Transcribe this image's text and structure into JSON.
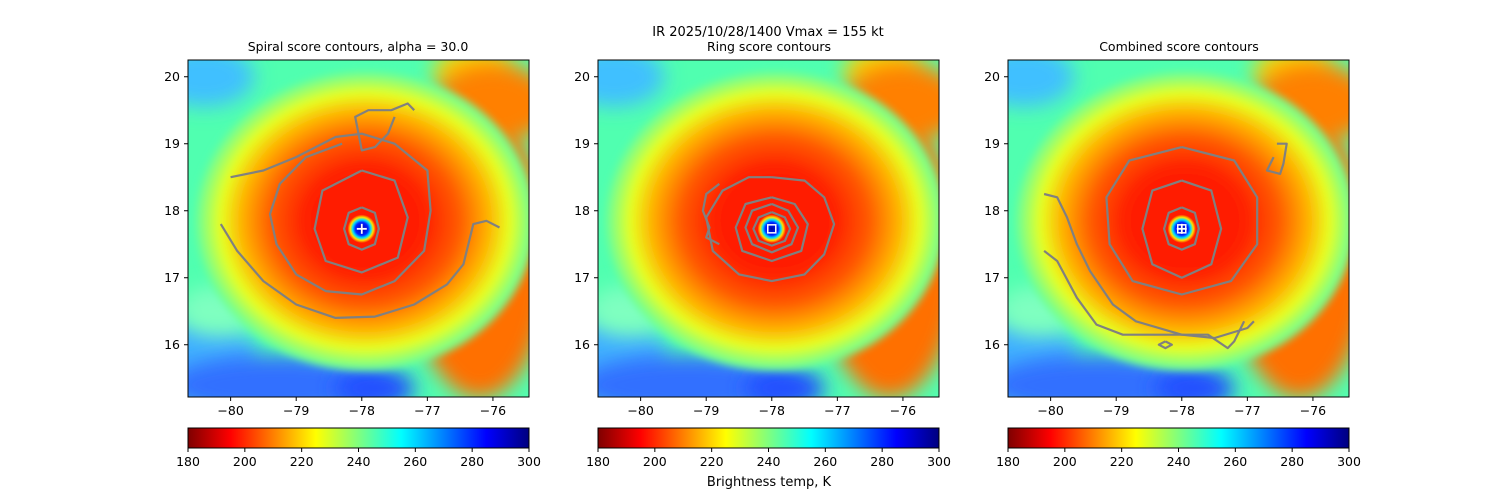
{
  "suptitle": "IR  2025/10/28/1400    Vmax = 155 kt",
  "colorbar_label": "Brightness temp, K",
  "chart_data": [
    {
      "type": "heatmap",
      "title": "Spiral score contours, alpha = 30.0",
      "xlim": [
        -80.65,
        -75.45
      ],
      "ylim": [
        15.22,
        20.25
      ],
      "xticks": [
        -80,
        -79,
        -78,
        -77,
        -76
      ],
      "yticks": [
        16,
        17,
        18,
        19,
        20
      ],
      "xtick_labels": [
        "−80",
        "−79",
        "−78",
        "−77",
        "−76"
      ],
      "ytick_labels": [
        "16",
        "17",
        "18",
        "19",
        "20"
      ],
      "colormap": "jet_r",
      "clim": [
        180,
        300
      ],
      "colorbar_ticks": [
        180,
        200,
        220,
        240,
        260,
        280,
        300
      ],
      "contour_color": "#808080",
      "center_marker": {
        "lon": -78.0,
        "lat": 17.73,
        "symbol": "plus",
        "color": "#ffffff"
      },
      "contours": [
        [
          [
            -78.0,
            18.05
          ],
          [
            -77.8,
            17.97
          ],
          [
            -77.74,
            17.73
          ],
          [
            -77.8,
            17.5
          ],
          [
            -78.0,
            17.42
          ],
          [
            -78.2,
            17.5
          ],
          [
            -78.27,
            17.73
          ],
          [
            -78.2,
            17.97
          ],
          [
            -78.0,
            18.05
          ]
        ],
        [
          [
            -78.0,
            18.6
          ],
          [
            -77.5,
            18.45
          ],
          [
            -77.3,
            17.9
          ],
          [
            -77.45,
            17.3
          ],
          [
            -78.0,
            17.08
          ],
          [
            -78.55,
            17.25
          ],
          [
            -78.72,
            17.73
          ],
          [
            -78.6,
            18.3
          ],
          [
            -78.0,
            18.6
          ]
        ],
        [
          [
            -80.0,
            18.5
          ],
          [
            -79.5,
            18.6
          ],
          [
            -79.0,
            18.8
          ],
          [
            -78.4,
            19.1
          ],
          [
            -78.0,
            19.15
          ],
          [
            -77.5,
            19.0
          ],
          [
            -77.0,
            18.6
          ],
          [
            -76.95,
            18.0
          ],
          [
            -77.05,
            17.4
          ],
          [
            -77.5,
            16.95
          ],
          [
            -78.0,
            16.75
          ],
          [
            -78.55,
            16.8
          ],
          [
            -79.0,
            17.05
          ],
          [
            -79.3,
            17.5
          ],
          [
            -79.4,
            17.95
          ],
          [
            -79.25,
            18.4
          ],
          [
            -78.85,
            18.8
          ],
          [
            -78.3,
            19.0
          ]
        ],
        [
          [
            -80.15,
            17.8
          ],
          [
            -79.9,
            17.4
          ],
          [
            -79.5,
            16.95
          ],
          [
            -79.0,
            16.6
          ],
          [
            -78.4,
            16.4
          ],
          [
            -77.8,
            16.42
          ],
          [
            -77.2,
            16.6
          ],
          [
            -76.7,
            16.9
          ],
          [
            -76.45,
            17.2
          ],
          [
            -76.3,
            17.8
          ],
          [
            -76.1,
            17.85
          ],
          [
            -75.9,
            17.75
          ]
        ],
        [
          [
            -77.5,
            19.4
          ],
          [
            -77.6,
            19.15
          ],
          [
            -77.8,
            18.95
          ],
          [
            -78.0,
            18.9
          ],
          [
            -78.1,
            19.4
          ],
          [
            -77.9,
            19.5
          ],
          [
            -77.65,
            19.5
          ],
          [
            -77.55,
            19.5
          ],
          [
            -77.3,
            19.6
          ],
          [
            -77.2,
            19.5
          ]
        ]
      ]
    },
    {
      "type": "heatmap",
      "title": "Ring score contours",
      "xlim": [
        -80.65,
        -75.45
      ],
      "ylim": [
        15.22,
        20.25
      ],
      "xticks": [
        -80,
        -79,
        -78,
        -77,
        -76
      ],
      "yticks": [
        16,
        17,
        18,
        19,
        20
      ],
      "xtick_labels": [
        "−80",
        "−79",
        "−78",
        "−77",
        "−76"
      ],
      "ytick_labels": [
        "16",
        "17",
        "18",
        "19",
        "20"
      ],
      "colormap": "jet_r",
      "clim": [
        180,
        300
      ],
      "colorbar_ticks": [
        180,
        200,
        220,
        240,
        260,
        280,
        300
      ],
      "contour_color": "#808080",
      "center_marker": {
        "lon": -78.0,
        "lat": 17.73,
        "symbol": "square",
        "color": "#ffffff"
      },
      "contours": [
        [
          [
            -78.0,
            18.2
          ],
          [
            -77.65,
            18.1
          ],
          [
            -77.45,
            17.8
          ],
          [
            -77.55,
            17.4
          ],
          [
            -78.0,
            17.25
          ],
          [
            -78.45,
            17.4
          ],
          [
            -78.55,
            17.75
          ],
          [
            -78.4,
            18.1
          ],
          [
            -78.0,
            18.2
          ]
        ],
        [
          [
            -78.0,
            18.1
          ],
          [
            -77.75,
            18.0
          ],
          [
            -77.6,
            17.75
          ],
          [
            -77.7,
            17.5
          ],
          [
            -78.0,
            17.38
          ],
          [
            -78.3,
            17.5
          ],
          [
            -78.4,
            17.75
          ],
          [
            -78.3,
            18.0
          ],
          [
            -78.0,
            18.1
          ]
        ],
        [
          [
            -78.0,
            17.98
          ],
          [
            -77.8,
            17.9
          ],
          [
            -77.72,
            17.73
          ],
          [
            -77.8,
            17.55
          ],
          [
            -78.0,
            17.48
          ],
          [
            -78.2,
            17.55
          ],
          [
            -78.28,
            17.73
          ],
          [
            -78.2,
            17.9
          ],
          [
            -78.0,
            17.98
          ]
        ],
        [
          [
            -78.0,
            18.5
          ],
          [
            -77.5,
            18.45
          ],
          [
            -77.2,
            18.2
          ],
          [
            -77.05,
            17.8
          ],
          [
            -77.2,
            17.35
          ],
          [
            -77.5,
            17.05
          ],
          [
            -78.0,
            16.95
          ],
          [
            -78.5,
            17.05
          ],
          [
            -78.9,
            17.4
          ],
          [
            -79.0,
            17.9
          ],
          [
            -78.75,
            18.3
          ],
          [
            -78.35,
            18.5
          ],
          [
            -78.0,
            18.5
          ]
        ],
        [
          [
            -78.8,
            18.4
          ],
          [
            -79.0,
            18.25
          ],
          [
            -79.05,
            18.0
          ],
          [
            -78.95,
            17.75
          ],
          [
            -79.0,
            17.6
          ],
          [
            -78.8,
            17.5
          ]
        ]
      ]
    },
    {
      "type": "heatmap",
      "title": "Combined score contours",
      "xlim": [
        -80.65,
        -75.45
      ],
      "ylim": [
        15.22,
        20.25
      ],
      "xticks": [
        -80,
        -79,
        -78,
        -77,
        -76
      ],
      "yticks": [
        16,
        17,
        18,
        19,
        20
      ],
      "xtick_labels": [
        "−80",
        "−79",
        "−78",
        "−77",
        "−76"
      ],
      "ytick_labels": [
        "16",
        "17",
        "18",
        "19",
        "20"
      ],
      "colormap": "jet_r",
      "clim": [
        180,
        300
      ],
      "colorbar_ticks": [
        180,
        200,
        220,
        240,
        260,
        280,
        300
      ],
      "contour_color": "#808080",
      "center_marker": {
        "lon": -78.0,
        "lat": 17.73,
        "symbol": "square-plus",
        "color": "#ffffff"
      },
      "contours": [
        [
          [
            -78.0,
            18.05
          ],
          [
            -77.8,
            17.97
          ],
          [
            -77.74,
            17.73
          ],
          [
            -77.8,
            17.5
          ],
          [
            -78.0,
            17.42
          ],
          [
            -78.2,
            17.5
          ],
          [
            -78.27,
            17.73
          ],
          [
            -78.2,
            17.97
          ],
          [
            -78.0,
            18.05
          ]
        ],
        [
          [
            -78.0,
            18.45
          ],
          [
            -77.55,
            18.3
          ],
          [
            -77.4,
            17.73
          ],
          [
            -77.55,
            17.2
          ],
          [
            -78.0,
            17.0
          ],
          [
            -78.45,
            17.2
          ],
          [
            -78.6,
            17.73
          ],
          [
            -78.45,
            18.3
          ],
          [
            -78.0,
            18.45
          ]
        ],
        [
          [
            -78.0,
            18.95
          ],
          [
            -77.2,
            18.75
          ],
          [
            -76.85,
            18.2
          ],
          [
            -76.85,
            17.5
          ],
          [
            -77.25,
            16.95
          ],
          [
            -78.0,
            16.75
          ],
          [
            -78.75,
            16.95
          ],
          [
            -79.1,
            17.5
          ],
          [
            -79.15,
            18.2
          ],
          [
            -78.8,
            18.75
          ],
          [
            -78.0,
            18.95
          ]
        ],
        [
          [
            -80.1,
            18.25
          ],
          [
            -79.9,
            18.2
          ],
          [
            -79.75,
            17.9
          ],
          [
            -79.6,
            17.5
          ],
          [
            -79.4,
            17.1
          ],
          [
            -79.05,
            16.6
          ],
          [
            -78.7,
            16.35
          ],
          [
            -78.0,
            16.15
          ],
          [
            -77.5,
            16.1
          ],
          [
            -77.0,
            16.25
          ],
          [
            -76.9,
            16.35
          ]
        ],
        [
          [
            -80.1,
            17.4
          ],
          [
            -79.9,
            17.25
          ],
          [
            -79.6,
            16.7
          ],
          [
            -79.3,
            16.3
          ],
          [
            -78.9,
            16.15
          ],
          [
            -78.3,
            16.15
          ],
          [
            -77.6,
            16.15
          ],
          [
            -77.3,
            15.95
          ],
          [
            -77.2,
            16.05
          ],
          [
            -77.05,
            16.35
          ]
        ],
        [
          [
            -76.6,
            18.8
          ],
          [
            -76.7,
            18.6
          ],
          [
            -76.5,
            18.55
          ],
          [
            -76.45,
            18.7
          ],
          [
            -76.4,
            19.0
          ],
          [
            -76.55,
            19.0
          ]
        ],
        [
          [
            -78.25,
            16.05
          ],
          [
            -78.35,
            16.0
          ],
          [
            -78.25,
            15.95
          ],
          [
            -78.15,
            16.0
          ],
          [
            -78.25,
            16.05
          ]
        ]
      ]
    }
  ]
}
